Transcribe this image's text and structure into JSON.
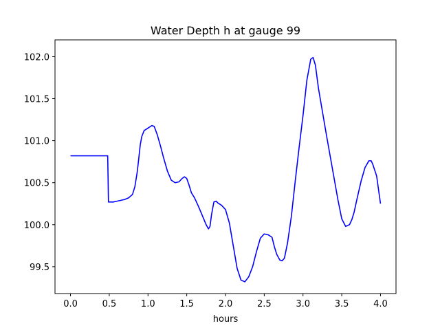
{
  "chart_data": {
    "type": "line",
    "title": "Water Depth h at gauge 99",
    "xlabel": "hours",
    "ylabel": "",
    "xlim": [
      -0.2,
      4.2
    ],
    "ylim": [
      99.18,
      102.2
    ],
    "xticks": [
      0.0,
      0.5,
      1.0,
      1.5,
      2.0,
      2.5,
      3.0,
      3.5,
      4.0
    ],
    "xtick_labels": [
      "0.0",
      "0.5",
      "1.0",
      "1.5",
      "2.0",
      "2.5",
      "3.0",
      "3.5",
      "4.0"
    ],
    "yticks": [
      99.5,
      100.0,
      100.5,
      101.0,
      101.5,
      102.0
    ],
    "ytick_labels": [
      "99.5",
      "100.0",
      "100.5",
      "101.0",
      "101.5",
      "102.0"
    ],
    "grid": false,
    "legend": "none",
    "series": [
      {
        "color": "#0000ff",
        "x": [
          0.0,
          0.1,
          0.2,
          0.3,
          0.4,
          0.48,
          0.485,
          0.49,
          0.55,
          0.6,
          0.65,
          0.7,
          0.75,
          0.8,
          0.83,
          0.86,
          0.88,
          0.9,
          0.92,
          0.95,
          1.0,
          1.05,
          1.08,
          1.12,
          1.16,
          1.2,
          1.25,
          1.3,
          1.35,
          1.4,
          1.44,
          1.47,
          1.5,
          1.53,
          1.56,
          1.6,
          1.65,
          1.7,
          1.75,
          1.78,
          1.8,
          1.82,
          1.85,
          1.88,
          1.9,
          1.95,
          2.0,
          2.05,
          2.1,
          2.15,
          2.2,
          2.25,
          2.3,
          2.35,
          2.4,
          2.45,
          2.5,
          2.55,
          2.6,
          2.63,
          2.66,
          2.7,
          2.73,
          2.76,
          2.8,
          2.85,
          2.9,
          2.95,
          3.0,
          3.05,
          3.1,
          3.13,
          3.16,
          3.2,
          3.25,
          3.3,
          3.35,
          3.4,
          3.45,
          3.5,
          3.55,
          3.6,
          3.63,
          3.66,
          3.7,
          3.75,
          3.8,
          3.85,
          3.88,
          3.9,
          3.95,
          4.0
        ],
        "y": [
          100.82,
          100.82,
          100.82,
          100.82,
          100.82,
          100.82,
          100.55,
          100.27,
          100.27,
          100.28,
          100.29,
          100.3,
          100.32,
          100.36,
          100.45,
          100.62,
          100.78,
          100.95,
          101.05,
          101.12,
          101.15,
          101.18,
          101.17,
          101.07,
          100.94,
          100.8,
          100.64,
          100.53,
          100.5,
          100.51,
          100.55,
          100.57,
          100.55,
          100.47,
          100.38,
          100.32,
          100.22,
          100.11,
          100.0,
          99.95,
          99.98,
          100.12,
          100.27,
          100.28,
          100.26,
          100.23,
          100.18,
          100.02,
          99.75,
          99.48,
          99.34,
          99.32,
          99.38,
          99.5,
          99.68,
          99.84,
          99.89,
          99.88,
          99.85,
          99.74,
          99.65,
          99.58,
          99.57,
          99.6,
          99.78,
          100.1,
          100.52,
          100.92,
          101.3,
          101.72,
          101.97,
          101.99,
          101.9,
          101.62,
          101.35,
          101.08,
          100.82,
          100.56,
          100.3,
          100.07,
          99.98,
          100.0,
          100.06,
          100.15,
          100.32,
          100.52,
          100.68,
          100.76,
          100.76,
          100.72,
          100.58,
          100.25
        ]
      }
    ]
  }
}
